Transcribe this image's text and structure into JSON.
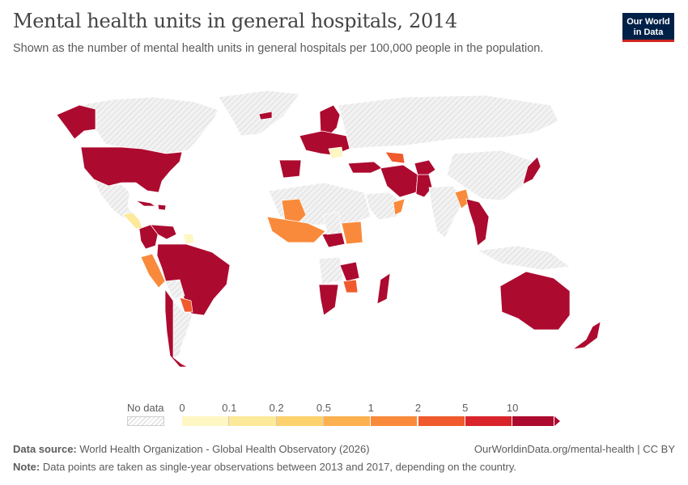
{
  "header": {
    "title": "Mental health units in general hospitals, 2014",
    "subtitle": "Shown as the number of mental health units in general hospitals per 100,000 people in the population."
  },
  "logo": {
    "line1": "Our World",
    "line2": "in Data"
  },
  "legend": {
    "no_data_label": "No data",
    "ticks": [
      "0",
      "0.1",
      "0.2",
      "0.5",
      "1",
      "2",
      "5",
      "10"
    ],
    "colors": [
      "#fef7c4",
      "#fde99a",
      "#fdd16c",
      "#fcb04f",
      "#f98a3b",
      "#f05a2c",
      "#d8242a",
      "#ad0a2f"
    ]
  },
  "colors": {
    "no_data_fill": "#ededed",
    "no_data_hatch": "#cfcfcf",
    "border": "#ffffff"
  },
  "footer": {
    "source_label": "Data source:",
    "source_text": "World Health Organization - Global Health Observatory (2026)",
    "url_text": "OurWorldinData.org/mental-health | CC BY",
    "note_label": "Note:",
    "note_text": "Data points are taken as single-year observations between 2013 and 2017, depending on the country."
  },
  "map": {
    "colored_regions": [
      {
        "name": "Canada",
        "bin": null
      },
      {
        "name": "Alaska",
        "bin": 7
      },
      {
        "name": "United States",
        "bin": 7
      },
      {
        "name": "Mexico",
        "bin": null
      },
      {
        "name": "Central America",
        "bin": 1
      },
      {
        "name": "Cuba",
        "bin": 7
      },
      {
        "name": "Hispaniola",
        "bin": 7
      },
      {
        "name": "Venezuela",
        "bin": 7
      },
      {
        "name": "Guyana",
        "bin": 0
      },
      {
        "name": "Colombia",
        "bin": 7
      },
      {
        "name": "Peru",
        "bin": 4
      },
      {
        "name": "Brazil",
        "bin": 7
      },
      {
        "name": "Bolivia",
        "bin": null
      },
      {
        "name": "Paraguay",
        "bin": 5
      },
      {
        "name": "Argentina",
        "bin": null
      },
      {
        "name": "Chile",
        "bin": 7
      },
      {
        "name": "Greenland",
        "bin": null
      },
      {
        "name": "Iceland",
        "bin": 7
      },
      {
        "name": "Scandinavia",
        "bin": 7
      },
      {
        "name": "Central Europe",
        "bin": 7
      },
      {
        "name": "Romania",
        "bin": 0
      },
      {
        "name": "Iberia",
        "bin": 7
      },
      {
        "name": "Russia",
        "bin": null
      },
      {
        "name": "Turkey",
        "bin": 7
      },
      {
        "name": "Caucasus",
        "bin": 5
      },
      {
        "name": "Iran",
        "bin": 7
      },
      {
        "name": "Afghanistan",
        "bin": 7
      },
      {
        "name": "Pakistan",
        "bin": 7
      },
      {
        "name": "Saudi Arabia",
        "bin": null
      },
      {
        "name": "Oman",
        "bin": 4
      },
      {
        "name": "India",
        "bin": null
      },
      {
        "name": "Bangladesh",
        "bin": 4
      },
      {
        "name": "Myanmar",
        "bin": 7
      },
      {
        "name": "China",
        "bin": null
      },
      {
        "name": "Japan",
        "bin": 7
      },
      {
        "name": "Sahara",
        "bin": null
      },
      {
        "name": "Mali",
        "bin": 4
      },
      {
        "name": "West Africa",
        "bin": 4
      },
      {
        "name": "Central African Republic",
        "bin": 7
      },
      {
        "name": "Chad",
        "bin": null
      },
      {
        "name": "Sudan",
        "bin": 4
      },
      {
        "name": "Angola",
        "bin": null
      },
      {
        "name": "Zambia",
        "bin": 7
      },
      {
        "name": "Zimbabwe",
        "bin": 5
      },
      {
        "name": "Namibia",
        "bin": 7
      },
      {
        "name": "Madagascar",
        "bin": 7
      },
      {
        "name": "Australia",
        "bin": 7
      },
      {
        "name": "New Zealand",
        "bin": 7
      },
      {
        "name": "Indonesia",
        "bin": null
      }
    ]
  }
}
